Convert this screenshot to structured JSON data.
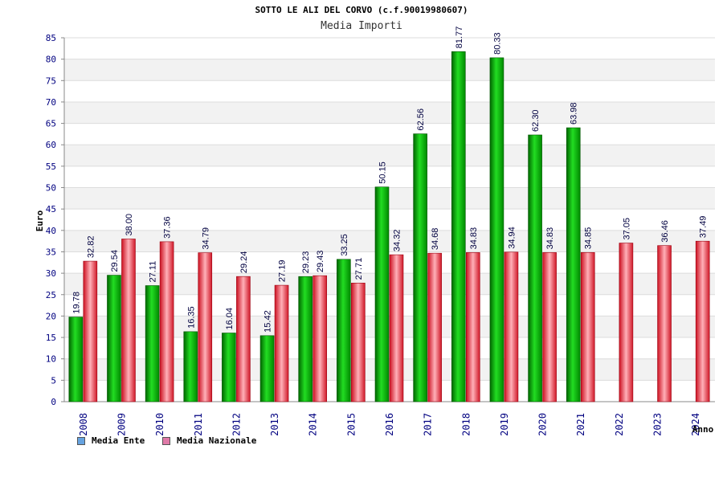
{
  "chart_data": {
    "type": "bar",
    "title": "SOTTO LE ALI DEL CORVO (c.f.90019980607)",
    "subtitle": "Media Importi",
    "ylabel": "Euro",
    "xlabel": "Anno",
    "ylim": [
      0,
      85
    ],
    "yticks": [
      "0",
      "5",
      "10",
      "15",
      "20",
      "25",
      "30",
      "35",
      "40",
      "45",
      "50",
      "55",
      "60",
      "65",
      "70",
      "75",
      "80",
      "85"
    ],
    "grid": "horizontal bands",
    "legend_position": "bottom-left",
    "categories": [
      "2008",
      "2009",
      "2010",
      "2011",
      "2012",
      "2013",
      "2014",
      "2015",
      "2016",
      "2017",
      "2018",
      "2019",
      "2020",
      "2021",
      "2022",
      "2023",
      "2024"
    ],
    "series": [
      {
        "name": "Media Ente",
        "color": "#00aa00",
        "legend_color": "#66a3e0",
        "values": [
          19.78,
          29.54,
          27.11,
          16.35,
          16.04,
          15.42,
          29.23,
          33.25,
          50.15,
          62.56,
          81.77,
          80.33,
          62.3,
          63.98,
          null,
          null,
          null
        ],
        "labels": [
          "19.78",
          "29.54",
          "27.11",
          "16.35",
          "16.04",
          "15.42",
          "29.23",
          "33.25",
          "50.15",
          "62.56",
          "81.77",
          "80.33",
          "62.30",
          "63.98",
          "",
          "",
          ""
        ]
      },
      {
        "name": "Media Nazionale",
        "color": "#e0303c",
        "legend_color": "#e07aa8",
        "values": [
          32.82,
          38.0,
          37.36,
          34.79,
          29.24,
          27.19,
          29.43,
          27.71,
          34.32,
          34.68,
          34.83,
          34.94,
          34.83,
          34.85,
          37.05,
          36.46,
          37.49
        ],
        "labels": [
          "32.82",
          "38.00",
          "37.36",
          "34.79",
          "29.24",
          "27.19",
          "29.43",
          "27.71",
          "34.32",
          "34.68",
          "34.83",
          "34.94",
          "34.83",
          "34.85",
          "37.05",
          "36.46",
          "37.49"
        ]
      }
    ]
  }
}
